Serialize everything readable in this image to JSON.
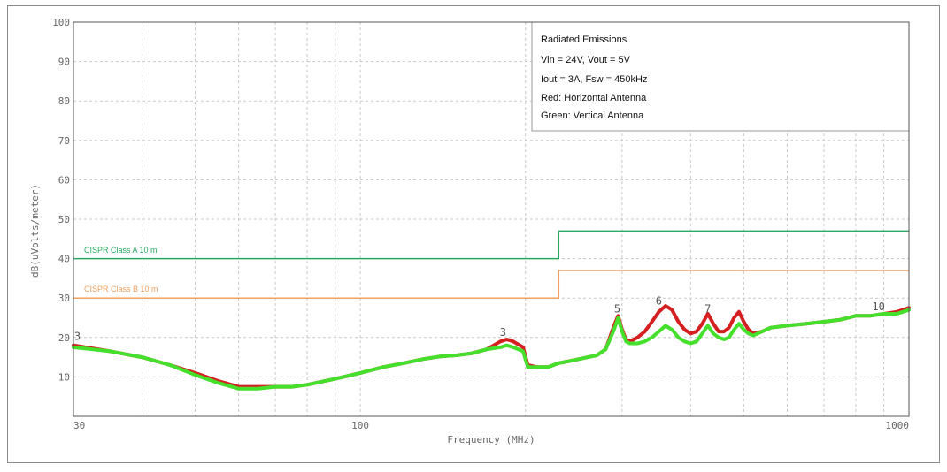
{
  "chart_data": {
    "type": "line",
    "xlabel": "Frequency (MHz)",
    "ylabel": "dB(uVolts/meter)",
    "xscale": "log",
    "xlim": [
      30,
      1000
    ],
    "ylim": [
      0,
      100
    ],
    "x_ticks": [
      {
        "value": 30,
        "label": "30"
      },
      {
        "value": 100,
        "label": "100"
      },
      {
        "value": 1000,
        "label": "1000"
      }
    ],
    "y_ticks": [
      {
        "value": 10,
        "label": "10"
      },
      {
        "value": 20,
        "label": "20"
      },
      {
        "value": 30,
        "label": "30"
      },
      {
        "value": 40,
        "label": "40"
      },
      {
        "value": 50,
        "label": "50"
      },
      {
        "value": 60,
        "label": "60"
      },
      {
        "value": 70,
        "label": "70"
      },
      {
        "value": 80,
        "label": "80"
      },
      {
        "value": 90,
        "label": "90"
      },
      {
        "value": 100,
        "label": "100"
      }
    ],
    "grid": true,
    "legend_position": "top-right",
    "legend_lines": [
      "Radiated Emissions",
      "Vin = 24V, Vout = 5V",
      "Iout = 3A, Fsw = 450kHz",
      "Red: Horizontal Antenna",
      "Green: Vertical Antenna"
    ],
    "colors": {
      "horizontal": "#d42020",
      "vertical": "#44e02c",
      "class_a": "#2aa862",
      "class_b": "#f0a060",
      "grid": "#c8c8c8",
      "frame": "#555555"
    },
    "limit_lines": [
      {
        "label": "CISPR Class A 10 m",
        "points": [
          [
            30,
            40
          ],
          [
            230,
            40
          ],
          [
            230,
            47
          ],
          [
            1000,
            47
          ]
        ]
      },
      {
        "label": "CISPR Class B 10 m",
        "points": [
          [
            30,
            30
          ],
          [
            230,
            30
          ],
          [
            230,
            37
          ],
          [
            1000,
            37
          ]
        ]
      }
    ],
    "series": [
      {
        "color_key": "horizontal",
        "x": [
          30,
          35,
          40,
          45,
          50,
          55,
          60,
          65,
          70,
          75,
          80,
          90,
          100,
          110,
          120,
          130,
          140,
          150,
          160,
          170,
          180,
          185,
          190,
          198,
          202,
          210,
          220,
          230,
          240,
          250,
          260,
          270,
          280,
          290,
          295,
          300,
          305,
          310,
          320,
          330,
          340,
          350,
          360,
          370,
          380,
          390,
          400,
          410,
          420,
          430,
          440,
          450,
          460,
          470,
          480,
          490,
          500,
          510,
          520,
          540,
          560,
          600,
          650,
          700,
          750,
          800,
          850,
          900,
          950,
          1000
        ],
        "y": [
          18,
          16.5,
          15,
          13,
          11,
          9,
          7.5,
          7.5,
          7.5,
          7.5,
          8,
          9.5,
          11,
          12.5,
          13.5,
          14.5,
          15.2,
          15.5,
          16,
          17,
          19,
          19.5,
          19,
          17.5,
          13,
          12.5,
          12.5,
          13.5,
          14,
          14.5,
          15,
          15.5,
          17,
          23,
          25.5,
          22,
          19.5,
          19,
          20,
          21.5,
          24,
          26.5,
          28,
          27,
          24,
          22,
          21,
          21.5,
          23.5,
          26,
          23.5,
          21.5,
          21.5,
          22.5,
          25,
          26.5,
          24,
          22,
          21,
          21.5,
          22.5,
          23,
          23.5,
          24,
          24.5,
          25.5,
          25.5,
          26,
          26.5,
          27.5
        ]
      },
      {
        "color_key": "vertical",
        "x": [
          30,
          35,
          40,
          45,
          50,
          55,
          60,
          65,
          70,
          75,
          80,
          90,
          100,
          110,
          120,
          130,
          140,
          150,
          160,
          170,
          180,
          185,
          190,
          198,
          202,
          210,
          220,
          230,
          240,
          250,
          260,
          270,
          280,
          290,
          295,
          300,
          305,
          310,
          320,
          330,
          340,
          350,
          360,
          370,
          380,
          390,
          400,
          410,
          420,
          430,
          440,
          450,
          460,
          470,
          480,
          490,
          500,
          510,
          520,
          540,
          560,
          600,
          650,
          700,
          750,
          800,
          850,
          900,
          950,
          1000
        ],
        "y": [
          17.5,
          16.5,
          15,
          13,
          10.5,
          8.5,
          7,
          7,
          7.5,
          7.5,
          8,
          9.5,
          11,
          12.5,
          13.5,
          14.5,
          15.2,
          15.5,
          16,
          17,
          17.5,
          18,
          17.5,
          16.5,
          12.5,
          12.5,
          12.5,
          13.5,
          14,
          14.5,
          15,
          15.5,
          17,
          22,
          25,
          21.5,
          19,
          18.5,
          18.5,
          19,
          20,
          21.5,
          23,
          22,
          20,
          19,
          18.5,
          19,
          21,
          23,
          21,
          20,
          19.5,
          20,
          22,
          23.5,
          22,
          21,
          20.5,
          21.5,
          22.5,
          23,
          23.5,
          24,
          24.5,
          25.5,
          25.5,
          26,
          26,
          27
        ]
      }
    ],
    "markers": [
      {
        "label": "3",
        "x": 30.5,
        "y": 18.5
      },
      {
        "label": "3",
        "x": 182,
        "y": 19.5
      },
      {
        "label": "5",
        "x": 294,
        "y": 25.5
      },
      {
        "label": "6",
        "x": 350,
        "y": 27.5
      },
      {
        "label": "7",
        "x": 430,
        "y": 25.5
      },
      {
        "label": "10",
        "x": 880,
        "y": 26
      }
    ]
  }
}
